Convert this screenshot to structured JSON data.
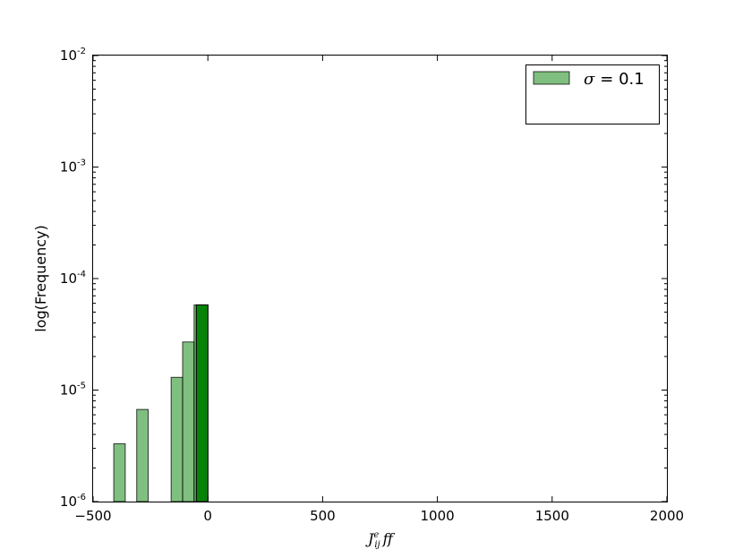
{
  "chart_data": {
    "type": "bar",
    "subtype": "histogram-overlay",
    "title": "",
    "xlabel": "J_ij^e ff",
    "ylabel": "log(Frequency)",
    "xlim": [
      -500,
      2000
    ],
    "ylim": [
      1e-06,
      0.01
    ],
    "yscale": "log",
    "grid": false,
    "legend_position": "top-right",
    "x_ticks": [
      {
        "value": -500,
        "label": "−500"
      },
      {
        "value": 0,
        "label": "0"
      },
      {
        "value": 500,
        "label": "500"
      },
      {
        "value": 1000,
        "label": "1000"
      },
      {
        "value": 1500,
        "label": "1500"
      },
      {
        "value": 2000,
        "label": "2000"
      }
    ],
    "y_ticks": [
      {
        "value": 1e-06,
        "base": "10",
        "exp": "-6"
      },
      {
        "value": 1e-05,
        "base": "10",
        "exp": "-5"
      },
      {
        "value": 0.0001,
        "base": "10",
        "exp": "-4"
      },
      {
        "value": 0.001,
        "base": "10",
        "exp": "-3"
      },
      {
        "value": 0.01,
        "base": "10",
        "exp": "-2"
      }
    ],
    "series": [
      {
        "legend_symbol": "σ",
        "legend_value": "= 0.1",
        "color": "#008000",
        "alpha": 0.5,
        "bars": [
          [
            -410,
            -360,
            3.3e-06
          ],
          [
            -310,
            -260,
            6.7e-06
          ],
          [
            -160,
            -110,
            1.3e-05
          ],
          [
            -110,
            -60,
            2.7e-05
          ],
          [
            -60,
            -10,
            5.8e-05
          ],
          [
            -50,
            0,
            5.8e-05
          ],
          [
            -50,
            0,
            5.8e-05
          ],
          [
            -50,
            0,
            5.8e-05
          ],
          [
            -50,
            0,
            5.8e-05
          ]
        ]
      }
    ]
  }
}
